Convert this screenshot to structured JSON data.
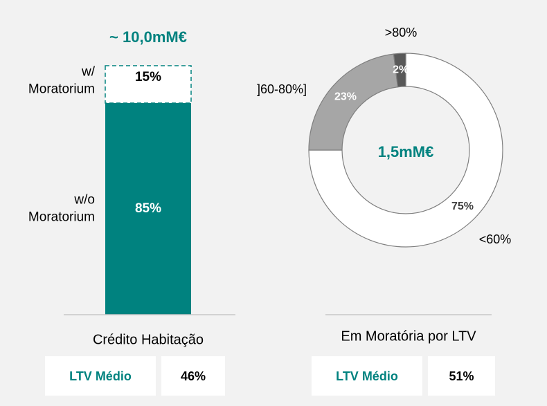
{
  "chart_data": [
    {
      "type": "bar",
      "title": "~ 10,0mM€",
      "categories": [
        "Crédito Habitação"
      ],
      "ylim": [
        0,
        100
      ],
      "series": [
        {
          "name": "w/o Moratorium",
          "color": "#00827f",
          "values": [
            85
          ],
          "value_labels": [
            "85%"
          ]
        },
        {
          "name": "w/ Moratorium",
          "color": "#ffffff",
          "values": [
            15
          ],
          "value_labels": [
            "15%"
          ]
        }
      ],
      "footer": {
        "label": "LTV Médio",
        "value": "46%"
      }
    },
    {
      "type": "pie",
      "title": "1,5mM€",
      "subtitle": "Em Moratória por LTV",
      "categories": [
        "<60%",
        "]60-80%]",
        ">80%"
      ],
      "values": [
        75,
        23,
        2
      ],
      "value_labels": [
        "75%",
        "23%",
        "2%"
      ],
      "colors": [
        "#ffffff",
        "#a6a6a6",
        "#595959"
      ],
      "footer": {
        "label": "LTV Médio",
        "value": "51%"
      }
    }
  ]
}
